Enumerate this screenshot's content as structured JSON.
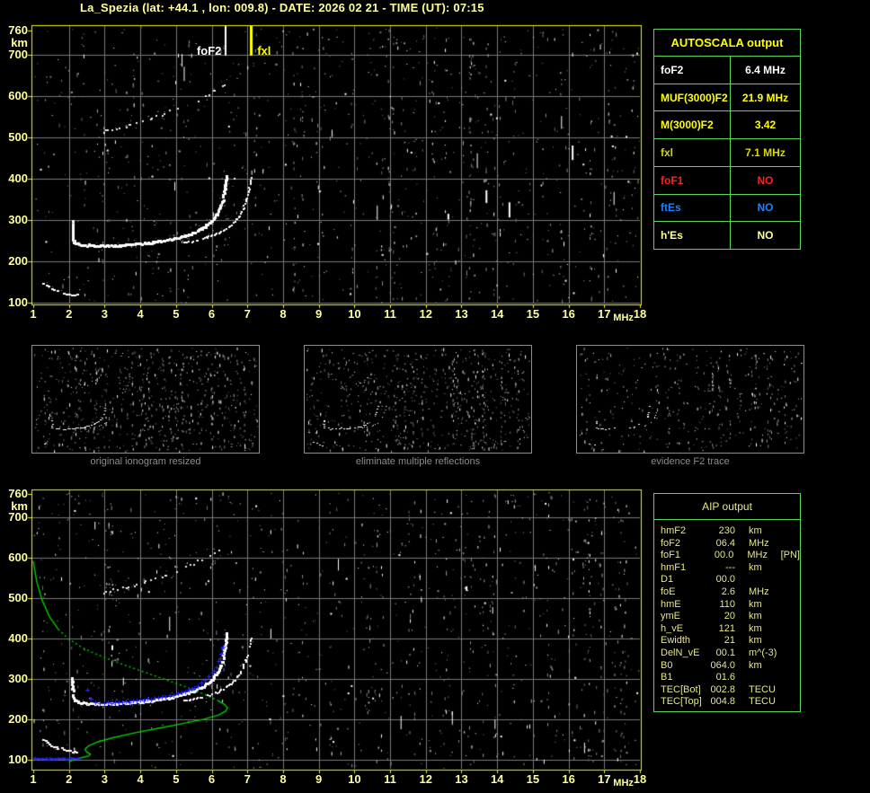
{
  "title": "La_Spezia (lat: +44.1 , lon: 009.8) - DATE: 2026 02 21 - TIME (UT): 07:15",
  "colors": {
    "background": "#000000",
    "title_text": "#ffff9c",
    "plot_border": "#f2f200",
    "grid": "#7a7a7a",
    "axis_text": "#ffff9c",
    "table_border": "#58d858",
    "autoscala_header": "#ffff00",
    "aip_text": "#e6e68c",
    "caption_text": "#8c8c8c",
    "profile_green": "#00cc00",
    "restored_blue": "#2828ff",
    "echo_white": "#ffffff"
  },
  "autoscala_table": {
    "header": "AUTOSCALA output",
    "rows": [
      {
        "label": "foF2",
        "value": "6.4 MHz",
        "color": "#ffffff"
      },
      {
        "label": "MUF(3000)F2",
        "value": "21.9 MHz",
        "color": "#ffff00"
      },
      {
        "label": "M(3000)F2",
        "value": "3.42",
        "color": "#ffff00"
      },
      {
        "label": "fxl",
        "value": "7.1 MHz",
        "color": "#d8d800"
      },
      {
        "label": "foF1",
        "value": "NO",
        "color": "#ff2020"
      },
      {
        "label": "ftEs",
        "value": "NO",
        "color": "#2080ff"
      },
      {
        "label": "h'Es",
        "value": "NO",
        "color": "#ffff9b"
      }
    ]
  },
  "aip_table": {
    "header": "AIP output",
    "rows": [
      {
        "label": "hmF2",
        "value": "230",
        "unit": "km",
        "extra": ""
      },
      {
        "label": "foF2",
        "value": "06.4",
        "unit": "MHz",
        "extra": ""
      },
      {
        "label": "foF1",
        "value": "00.0",
        "unit": "MHz",
        "extra": "[PN]"
      },
      {
        "label": "hmF1",
        "value": "---",
        "unit": "km",
        "extra": ""
      },
      {
        "label": "D1",
        "value": "00.0",
        "unit": "",
        "extra": ""
      },
      {
        "label": "foE",
        "value": "2.6",
        "unit": "MHz",
        "extra": ""
      },
      {
        "label": "hmE",
        "value": "110",
        "unit": "km",
        "extra": ""
      },
      {
        "label": "ymE",
        "value": "20",
        "unit": "km",
        "extra": ""
      },
      {
        "label": "h_vE",
        "value": "121",
        "unit": "km",
        "extra": ""
      },
      {
        "label": "Ewidth",
        "value": "21",
        "unit": "km",
        "extra": ""
      },
      {
        "label": "DelN_vE",
        "value": "00.1",
        "unit": "m^(-3)",
        "extra": ""
      },
      {
        "label": "B0",
        "value": "064.0",
        "unit": "km",
        "extra": ""
      },
      {
        "label": "B1",
        "value": "01.6",
        "unit": "",
        "extra": ""
      },
      {
        "label": "TEC[Bot]",
        "value": "002.8",
        "unit": "TECU",
        "extra": ""
      },
      {
        "label": "TEC[Top]",
        "value": "004.8",
        "unit": "TECU",
        "extra": ""
      }
    ]
  },
  "thumbnails": [
    {
      "caption": "original ionogram resized"
    },
    {
      "caption": "eliminate multiple reflections"
    },
    {
      "caption": "evidence F2 trace"
    }
  ],
  "chart_data": {
    "type": "scatter",
    "description": "vertical incidence ionograms: echo virtual height (km) vs sounding frequency (MHz)",
    "xlabel": "MHz",
    "ylabel": "km",
    "xlim": [
      1,
      18
    ],
    "ylim": [
      100,
      760
    ],
    "x_ticks": [
      1,
      2,
      3,
      4,
      5,
      6,
      7,
      8,
      9,
      10,
      11,
      12,
      13,
      14,
      15,
      16,
      17,
      18
    ],
    "y_ticks": [
      760,
      700,
      600,
      500,
      400,
      300,
      200,
      100
    ],
    "grid": true,
    "shared_series": [
      {
        "name": "E-region-echo-trace",
        "color": "#ffffff",
        "points": [
          [
            1.25,
            150
          ],
          [
            1.5,
            135
          ],
          [
            1.75,
            127
          ],
          [
            2.0,
            122
          ],
          [
            2.25,
            119
          ]
        ]
      },
      {
        "name": "F2-ordinary-trace",
        "color": "#ffffff",
        "points": [
          [
            2.07,
            302
          ],
          [
            2.08,
            262
          ],
          [
            2.12,
            248
          ],
          [
            2.3,
            243
          ],
          [
            2.7,
            240
          ],
          [
            3.2,
            240
          ],
          [
            3.7,
            243
          ],
          [
            4.2,
            247
          ],
          [
            4.7,
            253
          ],
          [
            5.1,
            261
          ],
          [
            5.45,
            271
          ],
          [
            5.75,
            284
          ],
          [
            6.0,
            301
          ],
          [
            6.15,
            320
          ],
          [
            6.27,
            345
          ],
          [
            6.33,
            372
          ],
          [
            6.38,
            400
          ],
          [
            6.4,
            418
          ]
        ]
      },
      {
        "name": "F2-extraordinary-trace",
        "color": "#ffffff",
        "points": [
          [
            5.2,
            247
          ],
          [
            5.6,
            253
          ],
          [
            5.95,
            262
          ],
          [
            6.25,
            273
          ],
          [
            6.5,
            287
          ],
          [
            6.7,
            305
          ],
          [
            6.85,
            327
          ],
          [
            6.97,
            355
          ],
          [
            7.05,
            385
          ],
          [
            7.1,
            412
          ]
        ]
      },
      {
        "name": "F2-second-hop-trace",
        "color": "#bbbbbb",
        "points": [
          [
            2.95,
            515
          ],
          [
            3.4,
            525
          ],
          [
            3.9,
            537
          ],
          [
            4.4,
            551
          ],
          [
            4.9,
            566
          ],
          [
            5.35,
            582
          ],
          [
            5.75,
            599
          ],
          [
            6.1,
            616
          ],
          [
            6.4,
            632
          ]
        ]
      }
    ],
    "plots": [
      {
        "name": "scaled ionogram with AUTOSCALA markers",
        "markers": [
          {
            "label": "foF2",
            "freq_mhz": 6.4,
            "color": "#ffffff"
          },
          {
            "label": "fxl",
            "freq_mhz": 7.1,
            "color": "#ffff00"
          }
        ]
      },
      {
        "name": "ionogram with AIP electron density profile and restored trace",
        "electron_density_profile": {
          "color": "#00cc00",
          "points": [
            [
              1.0,
              592
            ],
            [
              1.1,
              540
            ],
            [
              1.25,
              495
            ],
            [
              1.45,
              455
            ],
            [
              1.7,
              423
            ],
            [
              2.0,
              398
            ],
            [
              2.4,
              376
            ],
            [
              2.9,
              356
            ],
            [
              3.5,
              336
            ],
            [
              4.1,
              317
            ],
            [
              4.7,
              298
            ],
            [
              5.3,
              279
            ],
            [
              5.8,
              261
            ],
            [
              6.15,
              247
            ],
            [
              6.35,
              237
            ],
            [
              6.44,
              228
            ],
            [
              6.4,
              220
            ],
            [
              6.2,
              210
            ],
            [
              5.8,
              200
            ],
            [
              5.2,
              189
            ],
            [
              4.5,
              177
            ],
            [
              3.8,
              165
            ],
            [
              3.2,
              153
            ],
            [
              2.8,
              143
            ],
            [
              2.55,
              133
            ],
            [
              2.45,
              125
            ],
            [
              2.5,
              118
            ],
            [
              2.6,
              113
            ],
            [
              2.55,
              108
            ],
            [
              2.35,
              104
            ],
            [
              2.15,
              100
            ],
            [
              2.05,
              96
            ],
            [
              2.0,
              92
            ]
          ]
        },
        "restored_trace": {
          "color": "#2828ff",
          "E_segment": {
            "freq_start": 1.0,
            "freq_end": 2.3,
            "km": 103
          },
          "points": [
            [
              2.75,
              241
            ],
            [
              3.1,
              241
            ],
            [
              3.5,
              243
            ],
            [
              3.9,
              246
            ],
            [
              4.3,
              250
            ],
            [
              4.7,
              256
            ],
            [
              5.05,
              263
            ],
            [
              5.35,
              272
            ],
            [
              5.6,
              283
            ],
            [
              5.82,
              297
            ],
            [
              6.0,
              313
            ],
            [
              6.13,
              331
            ],
            [
              6.23,
              352
            ],
            [
              6.3,
              373
            ],
            [
              6.35,
              392
            ]
          ],
          "isolated_points": [
            [
              2.5,
              272
            ],
            [
              2.6,
              250
            ]
          ]
        }
      }
    ]
  }
}
